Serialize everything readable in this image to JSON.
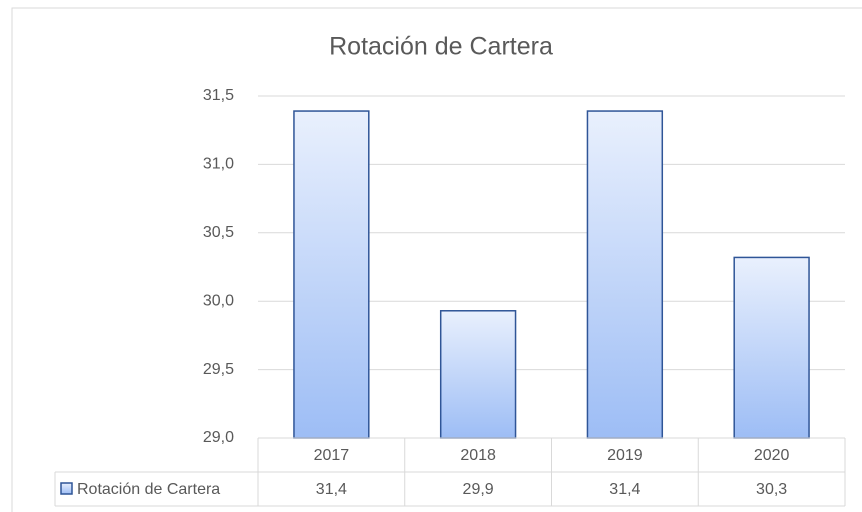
{
  "chart_data": {
    "type": "bar",
    "title": "Rotación de Cartera",
    "categories": [
      "2017",
      "2018",
      "2019",
      "2020"
    ],
    "series": [
      {
        "name": "Rotación de Cartera",
        "color": "#9dbdf5",
        "edge_color": "#2f5597",
        "values": [
          31.39,
          29.93,
          31.39,
          30.32
        ],
        "value_labels": [
          "31,4",
          "29,9",
          "31,4",
          "30,3"
        ]
      }
    ],
    "ylim": [
      29.0,
      31.5
    ],
    "yticks": [
      {
        "value": 29.0,
        "label": "29,0"
      },
      {
        "value": 29.5,
        "label": "29,5"
      },
      {
        "value": 30.0,
        "label": "30,0"
      },
      {
        "value": 30.5,
        "label": "30,5"
      },
      {
        "value": 31.0,
        "label": "31,0"
      },
      {
        "value": 31.5,
        "label": "31,5"
      }
    ],
    "grid": true,
    "data_table": true
  }
}
